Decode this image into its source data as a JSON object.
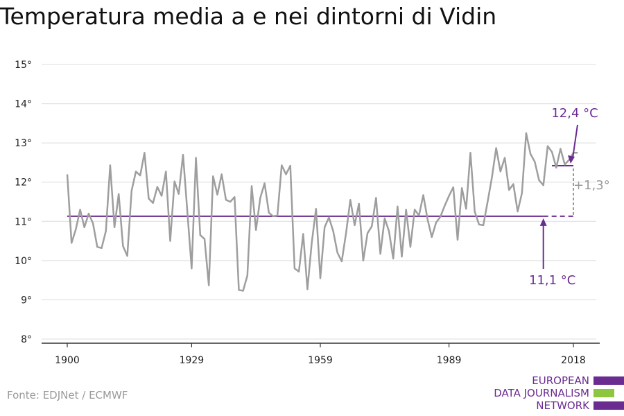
{
  "page": {
    "title": "Temperatura media a e nei dintorni di Vidin"
  },
  "source": "Fonte: EDJNet / ECMWF",
  "logo": {
    "lines": [
      "EUROPEAN",
      "DATA JOURNALISM",
      "NETWORK"
    ]
  },
  "colors": {
    "series": "#9e9e9e",
    "accent": "#6b2c91",
    "grid": "#dcdcdc",
    "logo_green": "#8dc63f",
    "annotation_gray": "#9a9a9a"
  },
  "chart_data": {
    "type": "line",
    "title": "Temperatura media a e nei dintorni di Vidin",
    "xlabel": "",
    "ylabel": "",
    "xlim": [
      1900,
      2019
    ],
    "ylim": [
      8,
      15
    ],
    "x_ticks": [
      1900,
      1929,
      1959,
      1989,
      2018
    ],
    "x_tick_labels": [
      "1900",
      "1929",
      "1959",
      "1989",
      "2018"
    ],
    "y_ticks": [
      8,
      9,
      10,
      11,
      12,
      13,
      14,
      15
    ],
    "y_tick_labels": [
      "8°",
      "9°",
      "10°",
      "11°",
      "12°",
      "13°",
      "14°",
      "15°"
    ],
    "grid": true,
    "x": [
      1900,
      1901,
      1902,
      1903,
      1904,
      1905,
      1906,
      1907,
      1908,
      1909,
      1910,
      1911,
      1912,
      1913,
      1914,
      1915,
      1916,
      1917,
      1918,
      1919,
      1920,
      1921,
      1922,
      1923,
      1924,
      1925,
      1926,
      1927,
      1928,
      1929,
      1930,
      1931,
      1932,
      1933,
      1934,
      1935,
      1936,
      1937,
      1938,
      1939,
      1940,
      1941,
      1942,
      1943,
      1944,
      1945,
      1946,
      1947,
      1948,
      1949,
      1950,
      1951,
      1952,
      1953,
      1954,
      1955,
      1956,
      1957,
      1958,
      1959,
      1960,
      1961,
      1962,
      1963,
      1964,
      1965,
      1966,
      1967,
      1968,
      1969,
      1970,
      1971,
      1972,
      1973,
      1974,
      1975,
      1976,
      1977,
      1978,
      1979,
      1980,
      1981,
      1982,
      1983,
      1984,
      1985,
      1986,
      1987,
      1988,
      1989,
      1990,
      1991,
      1992,
      1993,
      1994,
      1995,
      1996,
      1997,
      1998,
      1999,
      2000,
      2001,
      2002,
      2003,
      2004,
      2005,
      2006,
      2007,
      2008,
      2009,
      2010,
      2011,
      2012,
      2013,
      2014,
      2015,
      2016,
      2017,
      2018,
      2019
    ],
    "values": [
      12.2,
      10.45,
      10.8,
      11.3,
      10.85,
      11.2,
      10.95,
      10.35,
      10.32,
      10.75,
      12.43,
      10.85,
      11.7,
      10.37,
      10.12,
      11.78,
      12.27,
      12.17,
      12.75,
      11.58,
      11.47,
      11.88,
      11.65,
      12.27,
      10.5,
      12.02,
      11.7,
      12.7,
      11.25,
      9.8,
      12.62,
      10.65,
      10.55,
      9.37,
      12.15,
      11.68,
      12.2,
      11.55,
      11.5,
      11.62,
      9.25,
      9.23,
      9.62,
      11.9,
      10.78,
      11.6,
      11.97,
      11.22,
      11.13,
      11.15,
      12.43,
      12.2,
      12.42,
      9.8,
      9.72,
      10.68,
      9.27,
      10.45,
      11.32,
      9.55,
      10.85,
      11.1,
      10.75,
      10.2,
      9.98,
      10.7,
      11.55,
      10.9,
      11.45,
      10.0,
      10.7,
      10.87,
      11.6,
      10.17,
      11.08,
      10.75,
      10.05,
      11.38,
      10.1,
      11.3,
      10.35,
      11.3,
      11.15,
      11.67,
      11.05,
      10.6,
      10.97,
      11.12,
      11.4,
      11.65,
      11.87,
      10.53,
      11.85,
      11.32,
      12.75,
      11.25,
      10.92,
      10.9,
      11.5,
      12.12,
      12.87,
      12.27,
      12.62,
      11.8,
      11.95,
      11.25,
      11.72,
      13.25,
      12.72,
      12.52,
      12.05,
      11.92,
      12.92,
      12.77,
      12.37,
      12.85,
      12.45,
      12.57,
      12.75,
      12.75
    ],
    "reference_lines": [
      {
        "label": "11,1 °C",
        "value": 11.13,
        "from": 1900,
        "to": 2018,
        "solid_until": 2011
      },
      {
        "label": "12,4 °C",
        "value": 12.42,
        "from": 2013,
        "to": 2018
      }
    ],
    "annotations": {
      "low": "11,1 °C",
      "high": "12,4 °C",
      "delta": "+1,3°"
    }
  }
}
